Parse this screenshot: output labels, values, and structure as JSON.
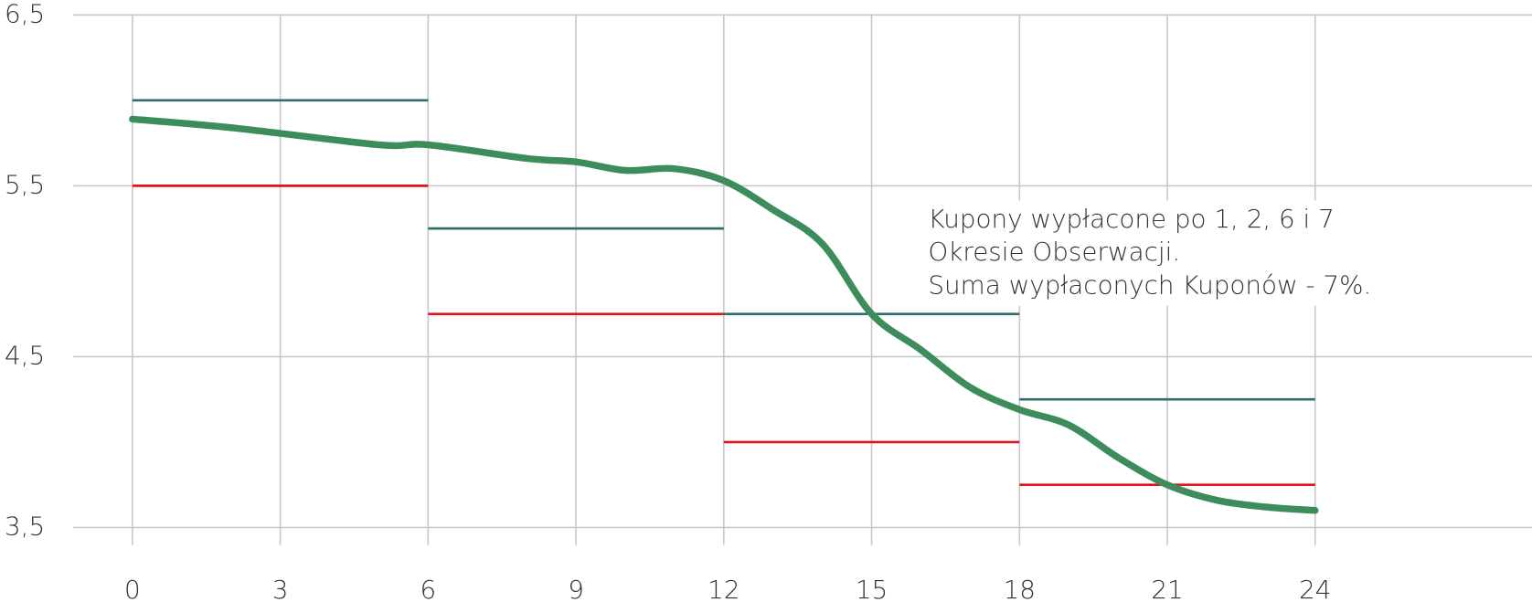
{
  "chart_data": {
    "type": "line",
    "xlim": [
      -1.2,
      28.4
    ],
    "ylim": [
      3.5,
      6.5
    ],
    "xticks": [
      0,
      3,
      6,
      9,
      12,
      15,
      18,
      21,
      24
    ],
    "yticks": [
      {
        "value": 6.5,
        "label": "6,5"
      },
      {
        "value": 5.5,
        "label": "5,5"
      },
      {
        "value": 4.5,
        "label": "4,5"
      },
      {
        "value": 3.5,
        "label": "3,5"
      }
    ],
    "grid": true,
    "x": [
      0,
      2,
      5,
      6,
      8,
      9,
      10,
      11,
      12,
      13,
      14,
      15,
      16,
      17,
      18,
      19,
      20,
      21,
      22,
      23,
      24
    ],
    "values": [
      5.89,
      5.84,
      5.74,
      5.74,
      5.66,
      5.64,
      5.59,
      5.6,
      5.53,
      5.36,
      5.16,
      4.75,
      4.54,
      4.32,
      4.19,
      4.1,
      3.91,
      3.75,
      3.66,
      3.62,
      3.6
    ],
    "color": "#3d8c5c",
    "step_edges": [
      0,
      6,
      12,
      18,
      24
    ],
    "step_series": [
      {
        "color": "#2f6e6a",
        "values": [
          6.0,
          5.25,
          4.75,
          4.25
        ]
      },
      {
        "color": "#e0141e",
        "values": [
          5.5,
          4.75,
          4.0,
          3.75
        ]
      }
    ],
    "annotation": [
      "Kupony wypłacone po 1, 2, 6 i 7",
      "Okresie Obserwacji.",
      "Suma wypłaconych Kuponów - 7%."
    ]
  }
}
